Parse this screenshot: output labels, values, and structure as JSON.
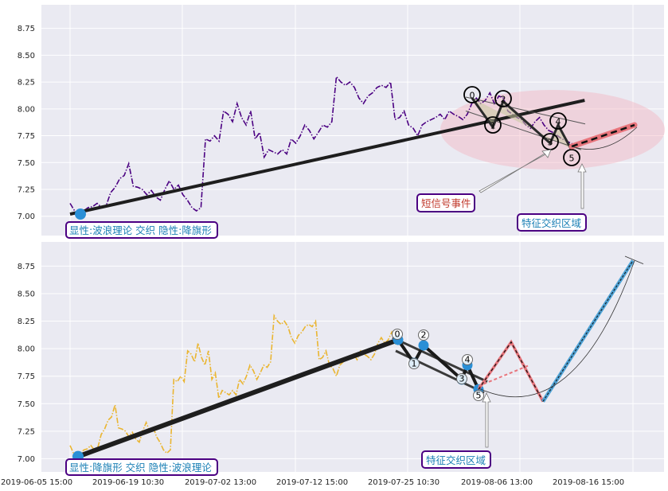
{
  "chart_data": [
    {
      "type": "line",
      "panel": "top",
      "yticks": [
        7.0,
        7.25,
        7.5,
        7.75,
        8.0,
        8.25,
        8.5,
        8.75
      ],
      "ylim": [
        6.82,
        8.97
      ],
      "grid": true,
      "price_color": "#4b0082",
      "series": [
        {
          "values": [
            7.12,
            7.05,
            7.03,
            7.05,
            7.08,
            7.09,
            7.12,
            7.08,
            7.1,
            7.22,
            7.27,
            7.35,
            7.38,
            7.49,
            7.28,
            7.27,
            7.25,
            7.2,
            7.24,
            7.18,
            7.15,
            7.25,
            7.33,
            7.25,
            7.29,
            7.2,
            7.15,
            7.08,
            7.05,
            7.08,
            7.72,
            7.7,
            7.75,
            7.7,
            7.98,
            7.95,
            7.88,
            8.05,
            7.92,
            7.85,
            7.98,
            7.72,
            7.78,
            7.55,
            7.62,
            7.6,
            7.58,
            7.62,
            7.58,
            7.72,
            7.68,
            7.75,
            7.85,
            7.8,
            7.72,
            7.78,
            7.85,
            7.83,
            7.88,
            8.3,
            8.25,
            8.22,
            8.25,
            8.2,
            8.1,
            8.05,
            8.12,
            8.15,
            8.2,
            8.22,
            8.2,
            8.25,
            7.9,
            7.92,
            7.98,
            7.85,
            7.82,
            7.75,
            7.85,
            7.88,
            7.9,
            7.92,
            7.95,
            7.9,
            7.98,
            7.95,
            7.93,
            7.9,
            7.95,
            8.05,
            8.1,
            8.05,
            8.08,
            8.15,
            8.05,
            8.12,
            8.1,
            7.98,
            7.95,
            7.92,
            7.9,
            7.85,
            7.82,
            7.88,
            7.92,
            7.85,
            7.8,
            7.78,
            7.75,
            7.72,
            7.7,
            7.68,
            7.66,
            7.65,
            7.7,
            7.72
          ]
        }
      ],
      "trend_line": [
        [
          0,
          7.02
        ],
        [
          114,
          8.08
        ]
      ],
      "wave_points": [
        {
          "label": "0",
          "value": 8.1
        },
        {
          "label": "1",
          "value": 7.83
        },
        {
          "label": "2",
          "value": 8.07
        },
        {
          "label": "3",
          "value": 7.68
        },
        {
          "label": "4",
          "value": 7.85
        },
        {
          "label": "5",
          "value": 7.63
        }
      ],
      "projection": [
        [
          0,
          7.65
        ],
        [
          1,
          7.85
        ]
      ],
      "annotations": {
        "explicit": "显性:波浪理论 交织 隐性:降旗形",
        "signal": "短信号事件",
        "zone": "特征交织区域"
      }
    },
    {
      "type": "line",
      "panel": "bottom",
      "yticks": [
        7.0,
        7.25,
        7.5,
        7.75,
        8.0,
        8.25,
        8.5,
        8.75
      ],
      "ylim": [
        6.88,
        8.97
      ],
      "grid": true,
      "price_color": "#eab530",
      "xticks": [
        "2019-06-05 15:00",
        "2019-06-19 10:30",
        "2019-07-02 13:00",
        "2019-07-12 15:00",
        "2019-07-25 10:30",
        "2019-08-06 13:00",
        "2019-08-16 15:00"
      ],
      "series": [
        {
          "values": [
            7.12,
            7.05,
            7.03,
            7.05,
            7.08,
            7.09,
            7.12,
            7.08,
            7.1,
            7.22,
            7.27,
            7.35,
            7.38,
            7.49,
            7.28,
            7.27,
            7.25,
            7.2,
            7.24,
            7.18,
            7.15,
            7.25,
            7.33,
            7.25,
            7.29,
            7.2,
            7.15,
            7.08,
            7.05,
            7.08,
            7.72,
            7.7,
            7.75,
            7.7,
            7.98,
            7.95,
            7.88,
            8.05,
            7.92,
            7.85,
            7.98,
            7.72,
            7.78,
            7.55,
            7.62,
            7.6,
            7.58,
            7.62,
            7.58,
            7.72,
            7.68,
            7.75,
            7.85,
            7.8,
            7.72,
            7.78,
            7.85,
            7.83,
            7.88,
            8.3,
            8.25,
            8.22,
            8.25,
            8.2,
            8.1,
            8.05,
            8.12,
            8.15,
            8.2,
            8.22,
            8.2,
            8.25,
            7.9,
            7.92,
            7.98,
            7.85,
            7.82,
            7.75,
            7.85,
            7.88,
            7.9,
            7.92,
            7.95,
            7.9,
            7.98,
            7.95,
            7.93,
            7.9,
            7.95,
            8.05,
            8.1,
            8.05,
            8.08,
            8.15,
            8.05,
            8.12,
            8.1
          ]
        }
      ],
      "trend_line": [
        [
          0,
          7.02
        ],
        [
          97,
          8.08
        ]
      ],
      "wave_points": [
        {
          "label": "0",
          "value": 8.08
        },
        {
          "label": "1",
          "value": 7.87
        },
        {
          "label": "2",
          "value": 8.03
        },
        {
          "label": "3",
          "value": 7.72
        },
        {
          "label": "4",
          "value": 7.85
        },
        {
          "label": "5",
          "value": 7.63
        }
      ],
      "projection_red": [
        7.63,
        8.06,
        7.52
      ],
      "projection_blue": [
        7.52,
        8.8
      ],
      "annotations": {
        "explicit": "显性:降旗形 交织 隐性:波浪理论",
        "zone": "特征交织区域"
      }
    }
  ]
}
